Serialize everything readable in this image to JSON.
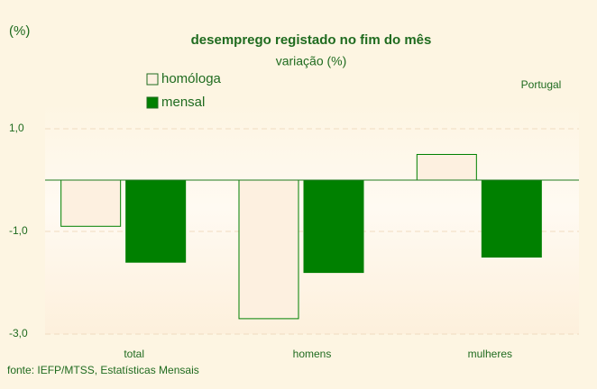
{
  "chart_data": {
    "type": "bar",
    "title": "desemprego registado no fim do mês",
    "subtitle": "variação (%)",
    "y_label": "(%)",
    "annotation": "Portugal",
    "source": "fonte: IEFP/MTSS, Estatísticas Mensais",
    "categories": [
      "total",
      "homens",
      "mulheres"
    ],
    "series": [
      {
        "name": "homóloga",
        "color": "#fdf0e0",
        "values": [
          -0.9,
          -2.7,
          0.5
        ]
      },
      {
        "name": "mensal",
        "color": "#008000",
        "values": [
          -1.6,
          -1.8,
          -1.5
        ]
      }
    ],
    "ylim": [
      -3,
      1.5
    ],
    "yticks": [
      {
        "value": 1,
        "label": "1,0"
      },
      {
        "value": -1,
        "label": "-1,0"
      },
      {
        "value": -3,
        "label": "-3,0"
      }
    ],
    "grid": true
  }
}
